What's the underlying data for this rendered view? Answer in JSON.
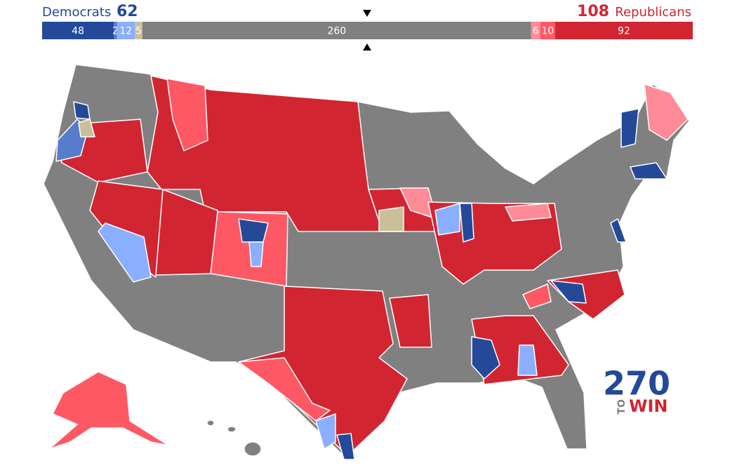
{
  "header": {
    "dem_label": "Democrats",
    "dem_total": 62,
    "rep_total": 108,
    "rep_label": "Republicans"
  },
  "bar": {
    "segments": [
      {
        "value": 48,
        "color": "#244999"
      },
      {
        "value": 2,
        "color": "#577ccc"
      },
      {
        "value": 12,
        "color": "#8aafff"
      },
      {
        "value": 5,
        "color": "#c9c09b"
      },
      {
        "value": 260,
        "color": "#808080"
      },
      {
        "value": 6,
        "color": "#ff8b98"
      },
      {
        "value": 10,
        "color": "#ff5865"
      },
      {
        "value": 92,
        "color": "#d22532"
      }
    ]
  },
  "logo": {
    "number": "270",
    "to": "TO",
    "win": "WIN"
  }
}
